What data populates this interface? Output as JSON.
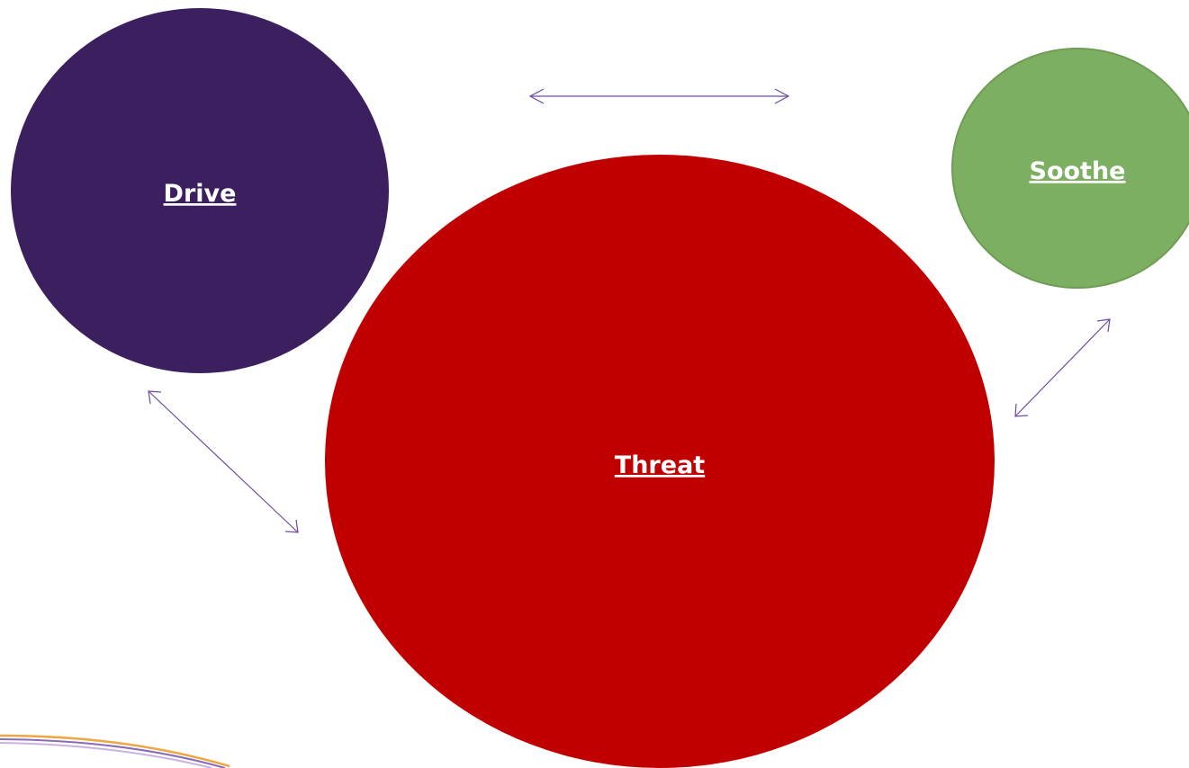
{
  "diagram": {
    "nodes": {
      "drive": {
        "label": "Drive",
        "color": "#3b1f5f"
      },
      "threat": {
        "label": "Threat",
        "color": "#c00000"
      },
      "soothe": {
        "label": "Soothe",
        "color": "#7daf63",
        "border_color": "#6f9c55"
      }
    },
    "connector_color": "#6d4aa6",
    "connectors": [
      {
        "from": "drive",
        "to": "soothe",
        "style": "double-arrow"
      },
      {
        "from": "drive",
        "to": "threat",
        "style": "double-arrow"
      },
      {
        "from": "threat",
        "to": "soothe",
        "style": "double-arrow"
      }
    ],
    "decoration": {
      "swoosh_colors": [
        "#f0a640",
        "#8b6bb8",
        "#c9b2e0"
      ]
    }
  }
}
